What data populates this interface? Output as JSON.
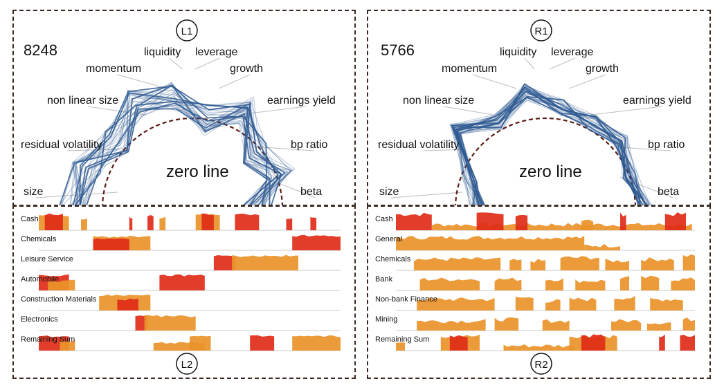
{
  "left": {
    "badge_top": "L1",
    "badge_bottom": "L2",
    "count": "8248",
    "zero_label": "zero line",
    "factors": [
      "size",
      "residual volatility",
      "non linear size",
      "momentum",
      "liquidity",
      "leverage",
      "growth",
      "earnings yield",
      "bp ratio",
      "beta"
    ],
    "rows": [
      "Cash",
      "Chemicals",
      "Leisure Service",
      "Automobile",
      "Construction Materials",
      "Electronics",
      "Remaining Sum"
    ]
  },
  "right": {
    "badge_top": "R1",
    "badge_bottom": "R2",
    "count": "5766",
    "zero_label": "zero line",
    "factors": [
      "size",
      "residual volatility",
      "non linear size",
      "momentum",
      "liquidity",
      "leverage",
      "growth",
      "earnings yield",
      "bp ratio",
      "beta"
    ],
    "rows": [
      "Cash",
      "General",
      "Chemicals",
      "Bank",
      "Non-bank Finance",
      "Mining",
      "Remaining Sum"
    ]
  },
  "colors": {
    "line": "#2f5a91",
    "zero": "#5a1d14",
    "orange": "#ea922a",
    "red": "#df2d18",
    "dash": "#3a2a22"
  }
}
